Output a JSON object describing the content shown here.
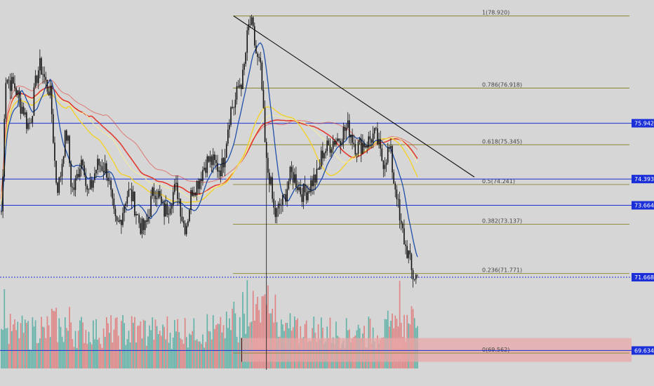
{
  "chart_data": {
    "type": "candlestick",
    "title": "",
    "y_axis": {
      "min": 68.9,
      "max": 79.5,
      "position": "right"
    },
    "horizontal_levels": [
      {
        "value": 75.942,
        "label": "75.942",
        "color": "#1a2fd8",
        "style": "solid"
      },
      {
        "value": 74.393,
        "label": "74.393",
        "color": "#1a2fd8",
        "style": "solid"
      },
      {
        "value": 73.664,
        "label": "73.664",
        "color": "#1a2fd8",
        "style": "solid"
      },
      {
        "value": 71.668,
        "label": "71.668",
        "color": "#1a2fd8",
        "style": "dotted"
      },
      {
        "value": 69.634,
        "label": "69.634",
        "color": "#1a2fd8",
        "style": "solid"
      }
    ],
    "fibonacci_levels": [
      {
        "ratio": "1",
        "value": 78.92,
        "label": "1(78.920)"
      },
      {
        "ratio": "0.786",
        "value": 76.918,
        "label": "0.786(76.918)"
      },
      {
        "ratio": "0.618",
        "value": 75.345,
        "label": "0.618(75.345)"
      },
      {
        "ratio": "0.5",
        "value": 74.241,
        "label": "0.5(74.241)"
      },
      {
        "ratio": "0.382",
        "value": 73.137,
        "label": "0.382(73.137)"
      },
      {
        "ratio": "0.236",
        "value": 71.771,
        "label": "0.236(71.771)"
      },
      {
        "ratio": "0",
        "value": 69.562,
        "label": "0(69.562)"
      }
    ],
    "trendline": {
      "from_price": 78.92,
      "to_price": 74.8,
      "color": "#111111"
    },
    "zone": {
      "top": 69.98,
      "bottom": 69.32,
      "color": "#e8a7a7"
    },
    "current_price": 71.668,
    "colors": {
      "up": "#3ca79a",
      "down": "#e26a6a",
      "candle": "#111111",
      "ma_yellow": "#f2d22b",
      "ma_red": "#e33a2e",
      "ma_blue": "#1f4fa8",
      "fib": "#8a8430"
    }
  }
}
